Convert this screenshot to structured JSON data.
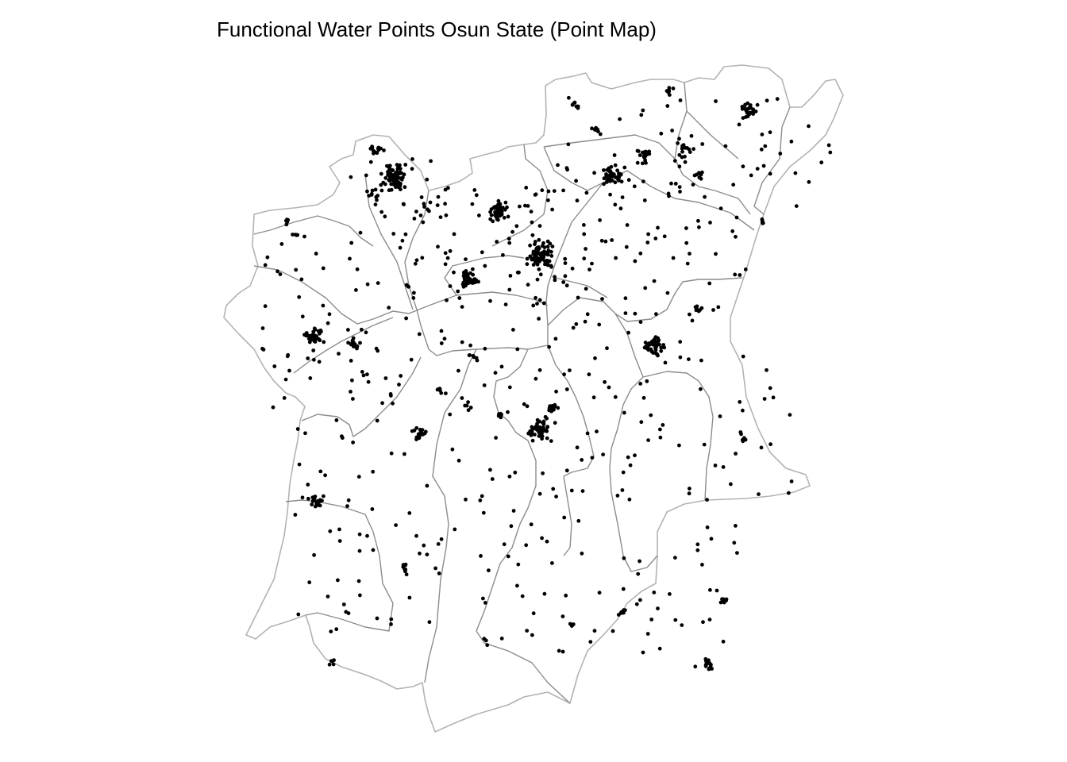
{
  "title": "Functional Water Points Osun State (Point Map)",
  "colors": {
    "background": "#ffffff",
    "state_boundary": "#b3b3b3",
    "lga_boundary": "#8c8c8c",
    "water_point": "#000000"
  },
  "map_data": {
    "type": "point-map",
    "legend": "none",
    "grid": false
  }
}
